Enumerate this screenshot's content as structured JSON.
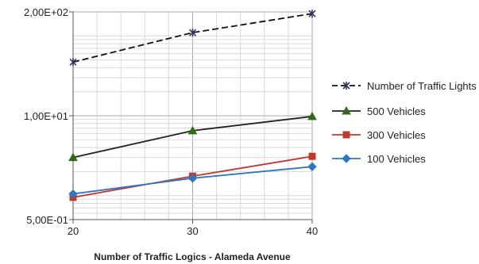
{
  "chart_data": {
    "type": "line",
    "y_scale": "log",
    "xlabel": "Number of Traffic Logics - Alameda Avenue",
    "ylabel": "",
    "x": [
      20,
      30,
      40
    ],
    "x_ticks": [
      "20",
      "30",
      "40"
    ],
    "ylim": [
      0.5,
      200
    ],
    "y_ticks": [
      {
        "value": 0.5,
        "label": "5,00E-01"
      },
      {
        "value": 10,
        "label": "1,00E+01"
      },
      {
        "value": 200,
        "label": "2,00E+02"
      }
    ],
    "grid": true,
    "legend_position": "right",
    "series": [
      {
        "name": "Number of Traffic Lights",
        "values": [
          47,
          110,
          190
        ],
        "color": "#333366",
        "line_color": "#111111",
        "dashed": true,
        "marker": "star"
      },
      {
        "name": "500 Vehicles",
        "values": [
          3.0,
          6.5,
          9.8
        ],
        "color": "#2e6b14",
        "line_color": "#222222",
        "dashed": false,
        "marker": "triangle"
      },
      {
        "name": "300 Vehicles",
        "values": [
          0.95,
          1.75,
          3.1
        ],
        "color": "#c0392b",
        "line_color": "#c0392b",
        "dashed": false,
        "marker": "square"
      },
      {
        "name": "100 Vehicles",
        "values": [
          1.05,
          1.65,
          2.3
        ],
        "color": "#2e75c4",
        "line_color": "#2e75c4",
        "dashed": false,
        "marker": "diamond"
      }
    ]
  }
}
